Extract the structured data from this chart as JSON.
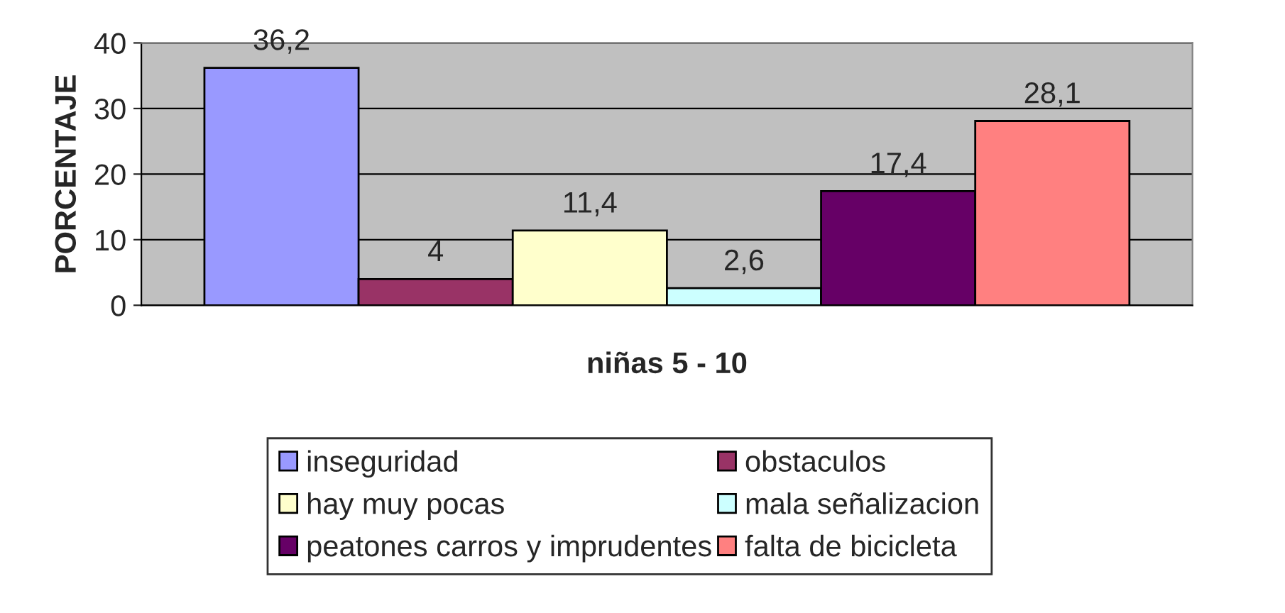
{
  "chart_data": {
    "type": "bar",
    "categories": [
      null
    ],
    "xlabel": "niñas 5 - 10",
    "ylabel": "PORCENTAJE",
    "series": [
      {
        "name": "inseguridad",
        "color": "#9999ff",
        "values": [
          36.2
        ],
        "value_labels": [
          "36,2"
        ]
      },
      {
        "name": "obstaculos",
        "color": "#993366",
        "values": [
          4
        ],
        "value_labels": [
          "4"
        ]
      },
      {
        "name": "hay muy pocas",
        "color": "#ffffcc",
        "values": [
          11.4
        ],
        "value_labels": [
          "11,4"
        ]
      },
      {
        "name": "mala señalizacion",
        "color": "#ccffff",
        "values": [
          2.6
        ],
        "value_labels": [
          "2,6"
        ]
      },
      {
        "name": "peatones carros y imprudentes",
        "color": "#660066",
        "values": [
          17.4
        ],
        "value_labels": [
          "17,4"
        ]
      },
      {
        "name": "falta de bicicleta",
        "color": "#ff8080",
        "values": [
          28.1
        ],
        "value_labels": [
          "28,1"
        ]
      }
    ],
    "ylim": [
      0,
      40
    ],
    "yticks": [
      0,
      10,
      20,
      30,
      40
    ],
    "grid": "y",
    "legend": "bottom"
  }
}
